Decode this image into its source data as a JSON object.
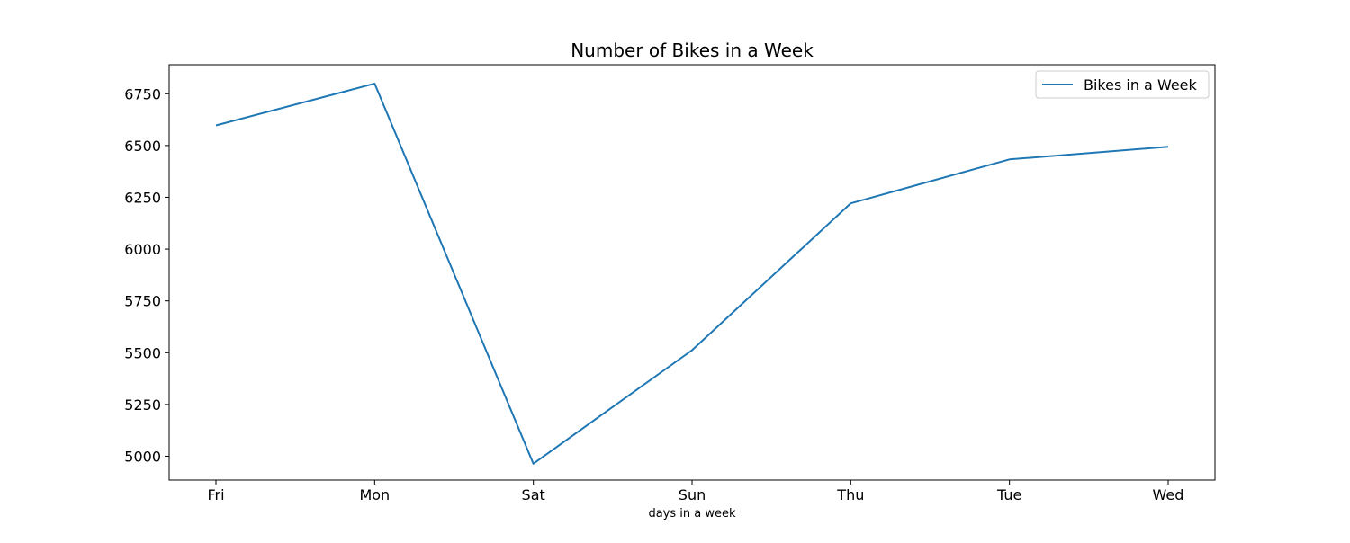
{
  "chart_data": {
    "type": "line",
    "title": "Number of Bikes in a Week",
    "xlabel": "days in a week",
    "ylabel": "",
    "categories": [
      "Fri",
      "Mon",
      "Sat",
      "Sun",
      "Thu",
      "Tue",
      "Wed"
    ],
    "series": [
      {
        "name": "Bikes in a Week",
        "values": [
          6597,
          6799,
          4964,
          5512,
          6221,
          6433,
          6494
        ],
        "color": "#1f77b4"
      }
    ],
    "yticks": [
      5000,
      5250,
      5500,
      5750,
      6000,
      6250,
      6500,
      6750
    ],
    "ytick_labels": [
      "5000",
      "5250",
      "5500",
      "5750",
      "6000",
      "6250",
      "6500",
      "6750"
    ],
    "ylim": [
      4885,
      6890
    ],
    "grid": false,
    "legend_position": "top-right"
  }
}
